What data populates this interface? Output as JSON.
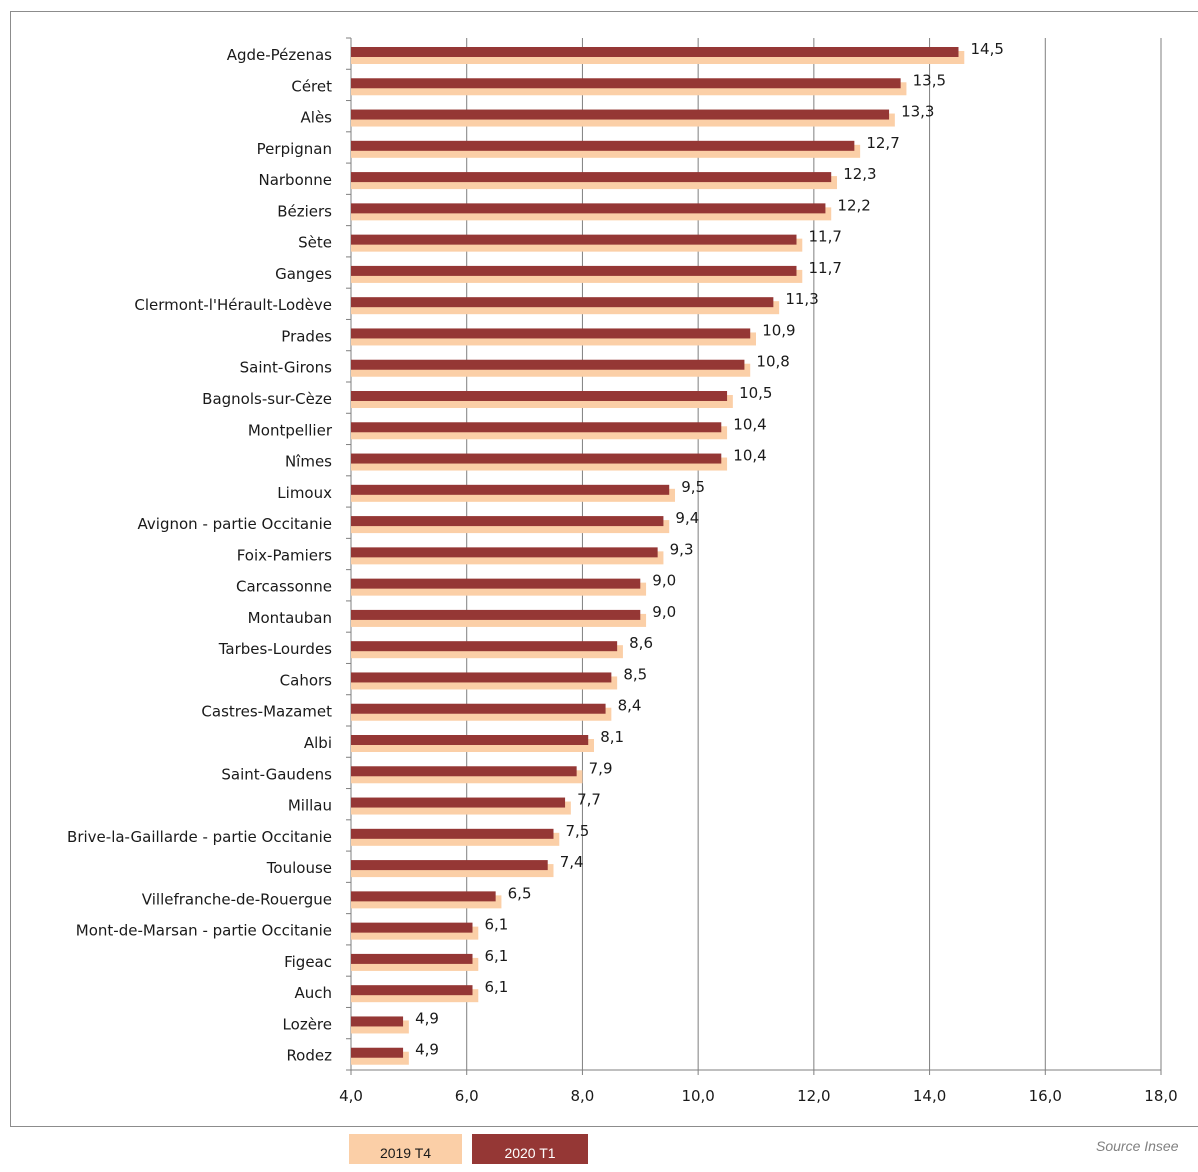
{
  "chart_data": {
    "type": "bar",
    "orientation": "horizontal",
    "categories": [
      "Agde-Pézenas",
      "Céret",
      "Alès",
      "Perpignan",
      "Narbonne",
      "Béziers",
      "Sète",
      "Ganges",
      "Clermont-l'Hérault-Lodève",
      "Prades",
      "Saint-Girons",
      "Bagnols-sur-Cèze",
      "Montpellier",
      "Nîmes",
      "Limoux",
      "Avignon - partie Occitanie",
      "Foix-Pamiers",
      "Carcassonne",
      "Montauban",
      "Tarbes-Lourdes",
      "Cahors",
      "Castres-Mazamet",
      "Albi",
      "Saint-Gaudens",
      "Millau",
      "Brive-la-Gaillarde - partie Occitanie",
      "Toulouse",
      "Villefranche-de-Rouergue",
      "Mont-de-Marsan - partie Occitanie",
      "Figeac",
      "Auch",
      "Lozère",
      "Rodez"
    ],
    "series": [
      {
        "name": "2019 T4",
        "color": "#fbcfa7",
        "values": [
          14.6,
          13.6,
          13.4,
          12.8,
          12.4,
          12.3,
          11.8,
          11.8,
          11.4,
          11.0,
          10.9,
          10.6,
          10.5,
          10.5,
          9.6,
          9.5,
          9.4,
          9.1,
          9.1,
          8.7,
          8.6,
          8.5,
          8.2,
          8.0,
          7.8,
          7.6,
          7.5,
          6.6,
          6.2,
          6.2,
          6.2,
          5.0,
          5.0
        ]
      },
      {
        "name": "2020 T1",
        "color": "#953735",
        "values": [
          14.5,
          13.5,
          13.3,
          12.7,
          12.3,
          12.2,
          11.7,
          11.7,
          11.3,
          10.9,
          10.8,
          10.5,
          10.4,
          10.4,
          9.5,
          9.4,
          9.3,
          9.0,
          9.0,
          8.6,
          8.5,
          8.4,
          8.1,
          7.9,
          7.7,
          7.5,
          7.4,
          6.5,
          6.1,
          6.1,
          6.1,
          4.9,
          4.9
        ]
      }
    ],
    "data_labels": [
      "14,5",
      "13,5",
      "13,3",
      "12,7",
      "12,3",
      "12,2",
      "11,7",
      "11,7",
      "11,3",
      "10,9",
      "10,8",
      "10,5",
      "10,4",
      "10,4",
      "9,5",
      "9,4",
      "9,3",
      "9,0",
      "9,0",
      "8,6",
      "8,5",
      "8,4",
      "8,1",
      "7,9",
      "7,7",
      "7,5",
      "7,4",
      "6,5",
      "6,1",
      "6,1",
      "6,1",
      "4,9",
      "4,9"
    ],
    "xlim": [
      4.0,
      18.0
    ],
    "xticks": [
      4.0,
      6.0,
      8.0,
      10.0,
      12.0,
      14.0,
      16.0,
      18.0
    ],
    "xtick_labels": [
      "4,0",
      "6,0",
      "8,0",
      "10,0",
      "12,0",
      "14,0",
      "16,0",
      "18,0"
    ],
    "grid": "vertical",
    "legend_placement": "bottom"
  },
  "legend": {
    "item1": "2019 T4",
    "item2": "2020 T1"
  },
  "source": "Source Insee"
}
